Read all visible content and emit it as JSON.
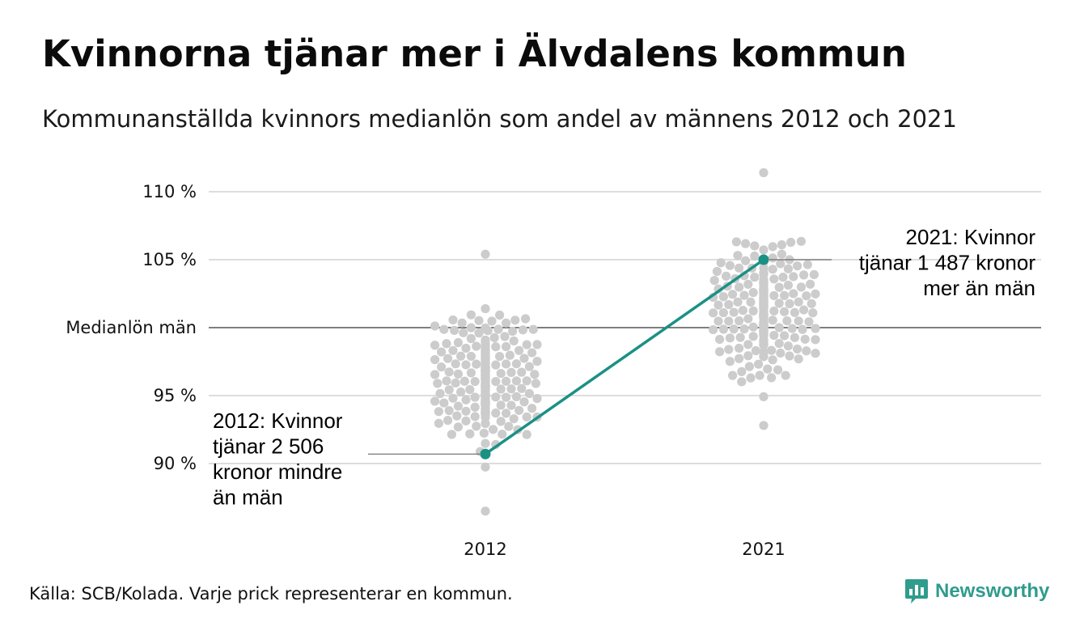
{
  "title": "Kvinnorna tjänar mer i Älvdalens kommun",
  "subtitle": "Kommunanställda kvinnors medianlön som andel av männens 2012 och 2021",
  "source": "Källa: SCB/Kolada. Varje prick representerar en kommun.",
  "brand": {
    "name": "Newsworthy",
    "icon": "bar-chart-bubble-icon",
    "color": "#2f9c8d"
  },
  "chart_data": {
    "type": "scatter",
    "subtype": "beeswarm",
    "x_categories": [
      "2012",
      "2021"
    ],
    "ylim": [
      86,
      111
    ],
    "y_ticks": [
      {
        "value": 90,
        "label": "90 %"
      },
      {
        "value": 95,
        "label": "95 %"
      },
      {
        "value": 100,
        "label": "Medianlön män"
      },
      {
        "value": 105,
        "label": "105 %"
      },
      {
        "value": 110,
        "label": "110 %"
      }
    ],
    "grid": true,
    "reference_line": {
      "value": 100,
      "label": "Medianlön män"
    },
    "colors": {
      "dots": "#cccccc",
      "highlight": "#1a9184",
      "grid": "#dddddd",
      "reference": "#333333"
    },
    "distribution": {
      "2012": {
        "center": 96.0,
        "sd": 2.2,
        "min": 86.5,
        "max": 105.4,
        "count": 290
      },
      "2021": {
        "center": 101.2,
        "sd": 2.3,
        "min": 92.8,
        "max": 111.4,
        "count": 290
      }
    },
    "highlight": {
      "name": "Älvdalens kommun",
      "points": [
        {
          "x": "2012",
          "y": 90.7
        },
        {
          "x": "2021",
          "y": 105.0
        }
      ]
    },
    "annotations": [
      {
        "x": "2012",
        "y": 90.7,
        "lines": [
          "2012: Kvinnor",
          "tjänar 2 506",
          "kronor mindre",
          "än män"
        ],
        "align": "left"
      },
      {
        "x": "2021",
        "y": 105.0,
        "lines": [
          "2021: Kvinnor",
          "tjänar 1 487 kronor",
          "mer än män"
        ],
        "align": "right"
      }
    ]
  }
}
